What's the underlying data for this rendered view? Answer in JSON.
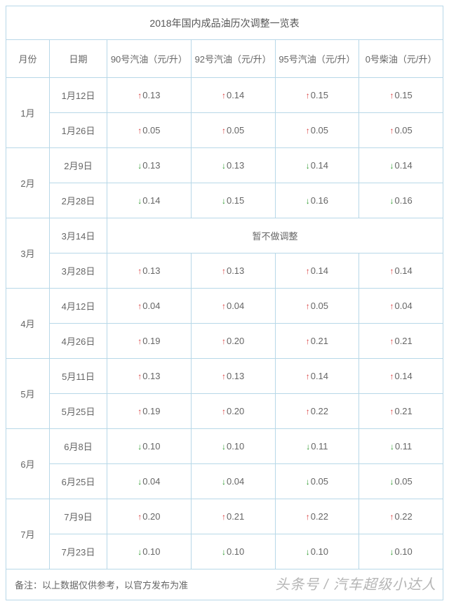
{
  "title": "2018年国内成品油历次调整一览表",
  "headers": {
    "month": "月份",
    "date": "日期",
    "g90": "90号汽油（元/升）",
    "g92": "92号汽油（元/升）",
    "g95": "95号汽油（元/升）",
    "d0": "0号柴油（元/升）"
  },
  "colors": {
    "border": "#b8d8e8",
    "text": "#666666",
    "up": "#d83a3a",
    "down": "#2e9a2e",
    "background": "#ffffff"
  },
  "months": [
    {
      "label": "1月",
      "rows": [
        {
          "date": "1月12日",
          "cells": [
            {
              "dir": "up",
              "value": "0.13"
            },
            {
              "dir": "up",
              "value": "0.14"
            },
            {
              "dir": "up",
              "value": "0.15"
            },
            {
              "dir": "up",
              "value": "0.15"
            }
          ]
        },
        {
          "date": "1月26日",
          "cells": [
            {
              "dir": "up",
              "value": "0.05"
            },
            {
              "dir": "up",
              "value": "0.05"
            },
            {
              "dir": "up",
              "value": "0.05"
            },
            {
              "dir": "up",
              "value": "0.05"
            }
          ]
        }
      ]
    },
    {
      "label": "2月",
      "rows": [
        {
          "date": "2月9日",
          "cells": [
            {
              "dir": "down",
              "value": "0.13"
            },
            {
              "dir": "down",
              "value": "0.13"
            },
            {
              "dir": "down",
              "value": "0.14"
            },
            {
              "dir": "down",
              "value": "0.14"
            }
          ]
        },
        {
          "date": "2月28日",
          "cells": [
            {
              "dir": "down",
              "value": "0.14"
            },
            {
              "dir": "down",
              "value": "0.15"
            },
            {
              "dir": "down",
              "value": "0.16"
            },
            {
              "dir": "down",
              "value": "0.16"
            }
          ]
        }
      ]
    },
    {
      "label": "3月",
      "rows": [
        {
          "date": "3月14日",
          "merged_text": "暂不做调整"
        },
        {
          "date": "3月28日",
          "cells": [
            {
              "dir": "up",
              "value": "0.13"
            },
            {
              "dir": "up",
              "value": "0.13"
            },
            {
              "dir": "up",
              "value": "0.14"
            },
            {
              "dir": "up",
              "value": "0.14"
            }
          ]
        }
      ]
    },
    {
      "label": "4月",
      "rows": [
        {
          "date": "4月12日",
          "cells": [
            {
              "dir": "up",
              "value": "0.04"
            },
            {
              "dir": "up",
              "value": "0.04"
            },
            {
              "dir": "up",
              "value": "0.05"
            },
            {
              "dir": "up",
              "value": "0.04"
            }
          ]
        },
        {
          "date": "4月26日",
          "cells": [
            {
              "dir": "up",
              "value": "0.19"
            },
            {
              "dir": "up",
              "value": "0.20"
            },
            {
              "dir": "up",
              "value": "0.21"
            },
            {
              "dir": "up",
              "value": "0.21"
            }
          ]
        }
      ]
    },
    {
      "label": "5月",
      "rows": [
        {
          "date": "5月11日",
          "cells": [
            {
              "dir": "up",
              "value": "0.13"
            },
            {
              "dir": "up",
              "value": "0.13"
            },
            {
              "dir": "up",
              "value": "0.14"
            },
            {
              "dir": "up",
              "value": "0.14"
            }
          ]
        },
        {
          "date": "5月25日",
          "cells": [
            {
              "dir": "up",
              "value": "0.19"
            },
            {
              "dir": "up",
              "value": "0.20"
            },
            {
              "dir": "up",
              "value": "0.22"
            },
            {
              "dir": "up",
              "value": "0.21"
            }
          ]
        }
      ]
    },
    {
      "label": "6月",
      "rows": [
        {
          "date": "6月8日",
          "cells": [
            {
              "dir": "down",
              "value": "0.10"
            },
            {
              "dir": "down",
              "value": "0.10"
            },
            {
              "dir": "down",
              "value": "0.11"
            },
            {
              "dir": "down",
              "value": "0.11"
            }
          ]
        },
        {
          "date": "6月25日",
          "cells": [
            {
              "dir": "down",
              "value": "0.04"
            },
            {
              "dir": "down",
              "value": "0.04"
            },
            {
              "dir": "down",
              "value": "0.05"
            },
            {
              "dir": "down",
              "value": "0.05"
            }
          ]
        }
      ]
    },
    {
      "label": "7月",
      "rows": [
        {
          "date": "7月9日",
          "cells": [
            {
              "dir": "up",
              "value": "0.20"
            },
            {
              "dir": "up",
              "value": "0.21"
            },
            {
              "dir": "up",
              "value": "0.22"
            },
            {
              "dir": "up",
              "value": "0.22"
            }
          ]
        },
        {
          "date": "7月23日",
          "cells": [
            {
              "dir": "down",
              "value": "0.10"
            },
            {
              "dir": "down",
              "value": "0.10"
            },
            {
              "dir": "down",
              "value": "0.10"
            },
            {
              "dir": "down",
              "value": "0.10"
            }
          ]
        }
      ]
    }
  ],
  "footer": "备注：以上数据仅供参考，以官方发布为准",
  "watermark": "头条号 / 汽车超级小达人",
  "glyphs": {
    "up": "↑",
    "down": "↓"
  }
}
